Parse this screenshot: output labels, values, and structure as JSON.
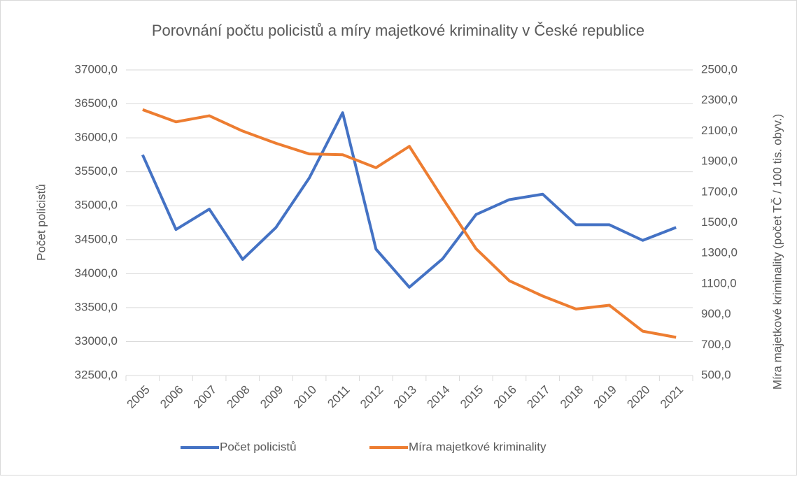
{
  "chart_data": {
    "type": "line",
    "title": "Porovnání počtu policistů a míry majetkové kriminality v České republice",
    "y_label": "Počet policistů",
    "y2_label": "Míra majetkové kriminality (počet TČ / 100 tis. obyv.)",
    "categories": [
      "2005",
      "2006",
      "2007",
      "2008",
      "2009",
      "2010",
      "2011",
      "2012",
      "2013",
      "2014",
      "2015",
      "2016",
      "2017",
      "2018",
      "2019",
      "2020",
      "2021"
    ],
    "series": [
      {
        "name": "Počet policistů",
        "color": "#4472c4",
        "axis": "y",
        "values": [
          35750,
          34650,
          34950,
          34210,
          34680,
          35410,
          36370,
          34360,
          33800,
          34220,
          34870,
          35090,
          35170,
          34720,
          34720,
          34490,
          34680
        ]
      },
      {
        "name": "Míra majetkové kriminality",
        "color": "#ed7d31",
        "axis": "y2",
        "values": [
          2240,
          2160,
          2200,
          2100,
          2020,
          1950,
          1945,
          1860,
          2000,
          1660,
          1330,
          1120,
          1020,
          935,
          960,
          790,
          750
        ]
      }
    ],
    "ylim": [
      32500,
      37000
    ],
    "yticks": [
      {
        "value": 32500,
        "label": "32500,0"
      },
      {
        "value": 33000,
        "label": "33000,0"
      },
      {
        "value": 33500,
        "label": "33500,0"
      },
      {
        "value": 34000,
        "label": "34000,0"
      },
      {
        "value": 34500,
        "label": "34500,0"
      },
      {
        "value": 35000,
        "label": "35000,0"
      },
      {
        "value": 35500,
        "label": "35500,0"
      },
      {
        "value": 36000,
        "label": "36000,0"
      },
      {
        "value": 36500,
        "label": "36500,0"
      },
      {
        "value": 37000,
        "label": "37000,0"
      }
    ],
    "y2lim": [
      500,
      2500
    ],
    "y2ticks": [
      {
        "value": 500,
        "label": "500,0"
      },
      {
        "value": 700,
        "label": "700,0"
      },
      {
        "value": 900,
        "label": "900,0"
      },
      {
        "value": 1100,
        "label": "1100,0"
      },
      {
        "value": 1300,
        "label": "1300,0"
      },
      {
        "value": 1500,
        "label": "1500,0"
      },
      {
        "value": 1700,
        "label": "1700,0"
      },
      {
        "value": 1900,
        "label": "1900,0"
      },
      {
        "value": 2100,
        "label": "2100,0"
      },
      {
        "value": 2300,
        "label": "2300,0"
      },
      {
        "value": 2500,
        "label": "2500,0"
      }
    ],
    "grid": true,
    "legend": "bottom"
  }
}
